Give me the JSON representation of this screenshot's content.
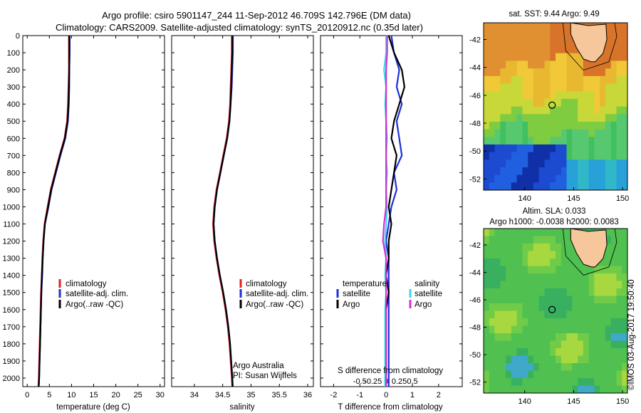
{
  "header": {
    "line1": "Argo profile: csiro 5901147_244 11-Sep-2012 46.709S 142.796E (DM data)",
    "line2": "Climatology: CARS2009. Satellite-adjusted climatology: synTS_20120912.nc (0.35d later)"
  },
  "colors": {
    "climatology": "#e0221c",
    "satellite": "#1f2fd6",
    "argo": "#000000",
    "sal_satellite": "#37d8e8",
    "sal_argo": "#d62fd6"
  },
  "chart_data": [
    {
      "type": "line",
      "id": "temperature",
      "xlabel": "temperature (deg C)",
      "ylim": [
        2050,
        0
      ],
      "xlim": [
        -1,
        31
      ],
      "xticks": [
        0,
        5,
        10,
        15,
        20,
        25,
        30
      ],
      "yticks": [
        0,
        100,
        200,
        300,
        400,
        500,
        600,
        700,
        800,
        900,
        1000,
        1100,
        1200,
        1300,
        1400,
        1500,
        1600,
        1700,
        1800,
        1900,
        2000
      ],
      "legend": [
        "climatology",
        "satellite-adj. clim.",
        "Argo(..raw -QC)"
      ],
      "depth": [
        0,
        100,
        200,
        300,
        400,
        500,
        600,
        700,
        800,
        900,
        1000,
        1100,
        1200,
        1300,
        1400,
        1500,
        1600,
        1700,
        1800,
        1900,
        2000,
        2050
      ],
      "series": [
        {
          "name": "climatology",
          "values": [
            9.4,
            9.4,
            9.4,
            9.3,
            9.2,
            9.0,
            8.4,
            7.3,
            6.3,
            5.3,
            4.6,
            3.9,
            3.6,
            3.4,
            3.3,
            3.1,
            3.0,
            2.9,
            2.8,
            2.7,
            2.6,
            2.5
          ]
        },
        {
          "name": "satellite-adj. clim.",
          "values": [
            9.6,
            9.6,
            9.5,
            9.5,
            9.4,
            9.2,
            8.6,
            7.5,
            6.5,
            5.5,
            4.8,
            4.0,
            3.7,
            3.5,
            3.4,
            3.2,
            3.1,
            3.0,
            2.9,
            2.8,
            2.7,
            2.6
          ]
        },
        {
          "name": "Argo(..raw -QC)",
          "values": [
            9.5,
            9.5,
            9.5,
            9.4,
            9.3,
            9.1,
            8.5,
            7.4,
            6.4,
            5.4,
            4.7,
            4.0,
            3.7,
            3.5,
            3.3,
            3.2,
            3.1,
            3.0,
            2.9,
            2.8,
            2.7,
            2.6
          ]
        }
      ]
    },
    {
      "type": "line",
      "id": "salinity",
      "xlabel": "salinity",
      "ylim": [
        2050,
        0
      ],
      "xlim": [
        33.6,
        36.1
      ],
      "xticks": [
        34,
        34.5,
        35,
        35.5,
        36
      ],
      "legend": [
        "climatology",
        "satellite-adj. clim.",
        "Argo(..raw -QC)"
      ],
      "note1": "Argo Australia",
      "note2": "PI: Susan Wijffels",
      "depth": [
        0,
        100,
        200,
        300,
        400,
        500,
        600,
        700,
        800,
        900,
        1000,
        1100,
        1200,
        1300,
        1400,
        1500,
        1600,
        1700,
        1800,
        1900,
        2000,
        2050
      ],
      "series": [
        {
          "name": "climatology",
          "values": [
            34.66,
            34.66,
            34.65,
            34.64,
            34.63,
            34.61,
            34.57,
            34.51,
            34.45,
            34.39,
            34.35,
            34.33,
            34.35,
            34.39,
            34.44,
            34.5,
            34.55,
            34.59,
            34.62,
            34.64,
            34.66,
            34.67
          ]
        },
        {
          "name": "satellite-adj. clim.",
          "values": [
            34.68,
            34.68,
            34.67,
            34.66,
            34.64,
            34.62,
            34.58,
            34.52,
            34.46,
            34.4,
            34.36,
            34.34,
            34.36,
            34.4,
            34.45,
            34.51,
            34.56,
            34.6,
            34.63,
            34.65,
            34.67,
            34.68
          ]
        },
        {
          "name": "Argo(..raw -QC)",
          "values": [
            34.67,
            34.67,
            34.66,
            34.65,
            34.64,
            34.62,
            34.58,
            34.52,
            34.46,
            34.4,
            34.36,
            34.34,
            34.36,
            34.4,
            34.45,
            34.51,
            34.56,
            34.6,
            34.63,
            34.65,
            34.67,
            34.67
          ]
        }
      ]
    },
    {
      "type": "line",
      "id": "differences",
      "xlabel": "T difference from climatology",
      "xlabel_top": "S difference from climatology",
      "xlim": [
        -2.5,
        2.9
      ],
      "xticks": [
        -2,
        -1,
        0,
        1,
        2
      ],
      "sticks": [
        "-0.5",
        "-0.25",
        "0",
        "0.25",
        "0.5"
      ],
      "legend_t_title": "temperature",
      "legend_s_title": "salinity",
      "legend_t": [
        "satellite",
        "Argo"
      ],
      "legend_s": [
        "satellite",
        "Argo"
      ],
      "depth": [
        0,
        100,
        200,
        300,
        400,
        500,
        600,
        700,
        800,
        900,
        1000,
        1100,
        1200,
        1300,
        1400,
        1500,
        1600,
        1700,
        1800,
        1900,
        2000,
        2050
      ],
      "series": [
        {
          "name": "T satellite",
          "values": [
            0.2,
            0.3,
            0.5,
            0.4,
            0.6,
            0.4,
            0.5,
            0.6,
            0.3,
            0.4,
            0.2,
            0.1,
            0.0,
            0.1,
            0.1,
            0.1,
            0.1,
            0.1,
            0.1,
            0.1,
            0.1,
            0.1
          ]
        },
        {
          "name": "T Argo",
          "values": [
            0.1,
            0.3,
            0.6,
            0.7,
            0.5,
            0.3,
            0.2,
            0.4,
            0.3,
            0.2,
            0.1,
            0.2,
            0.1,
            0.1,
            0.0,
            0.1,
            0.0,
            0.0,
            0.0,
            0.0,
            0.0,
            0.0
          ]
        },
        {
          "name": "S satellite",
          "values": [
            0.0,
            0.0,
            -0.02,
            0.0,
            -0.01,
            0.0,
            0.01,
            0.0,
            0.01,
            0.0,
            0.01,
            0.0,
            -0.01,
            0.0,
            -0.01,
            0.0,
            -0.01,
            -0.01,
            -0.01,
            -0.01,
            -0.01,
            -0.01
          ]
        },
        {
          "name": "S Argo",
          "values": [
            0.01,
            0.01,
            0.0,
            0.0,
            0.0,
            0.0,
            0.0,
            0.0,
            0.0,
            0.0,
            0.0,
            -0.02,
            -0.03,
            0.0,
            0.0,
            0.0,
            0.0,
            0.0,
            0.0,
            0.0,
            0.0,
            0.0
          ]
        }
      ]
    },
    {
      "type": "heatmap",
      "id": "map-sst",
      "title": "sat. SST: 9.44 Argo: 9.49",
      "xticks": [
        140,
        145,
        150
      ],
      "yticks": [
        -42,
        -44,
        -46,
        -48,
        -50,
        -52
      ],
      "xlim": [
        135.8,
        150.5
      ],
      "ylim": [
        -52.8,
        -40.8
      ],
      "argo_position": [
        142.796,
        -46.709
      ]
    },
    {
      "type": "heatmap",
      "id": "map-sla",
      "title_line1": "Altim. SLA: 0.033",
      "title_line2": "Argo h1000: -0.0038 h2000: 0.0083",
      "xticks": [
        140,
        145,
        150
      ],
      "yticks": [
        -42,
        -44,
        -46,
        -48,
        -50,
        -52
      ],
      "xlim": [
        135.8,
        150.5
      ],
      "ylim": [
        -52.8,
        -40.8
      ],
      "argo_position": [
        142.796,
        -46.709
      ]
    }
  ],
  "credit": "©IMOS 03-Aug-2017 19:50:40"
}
